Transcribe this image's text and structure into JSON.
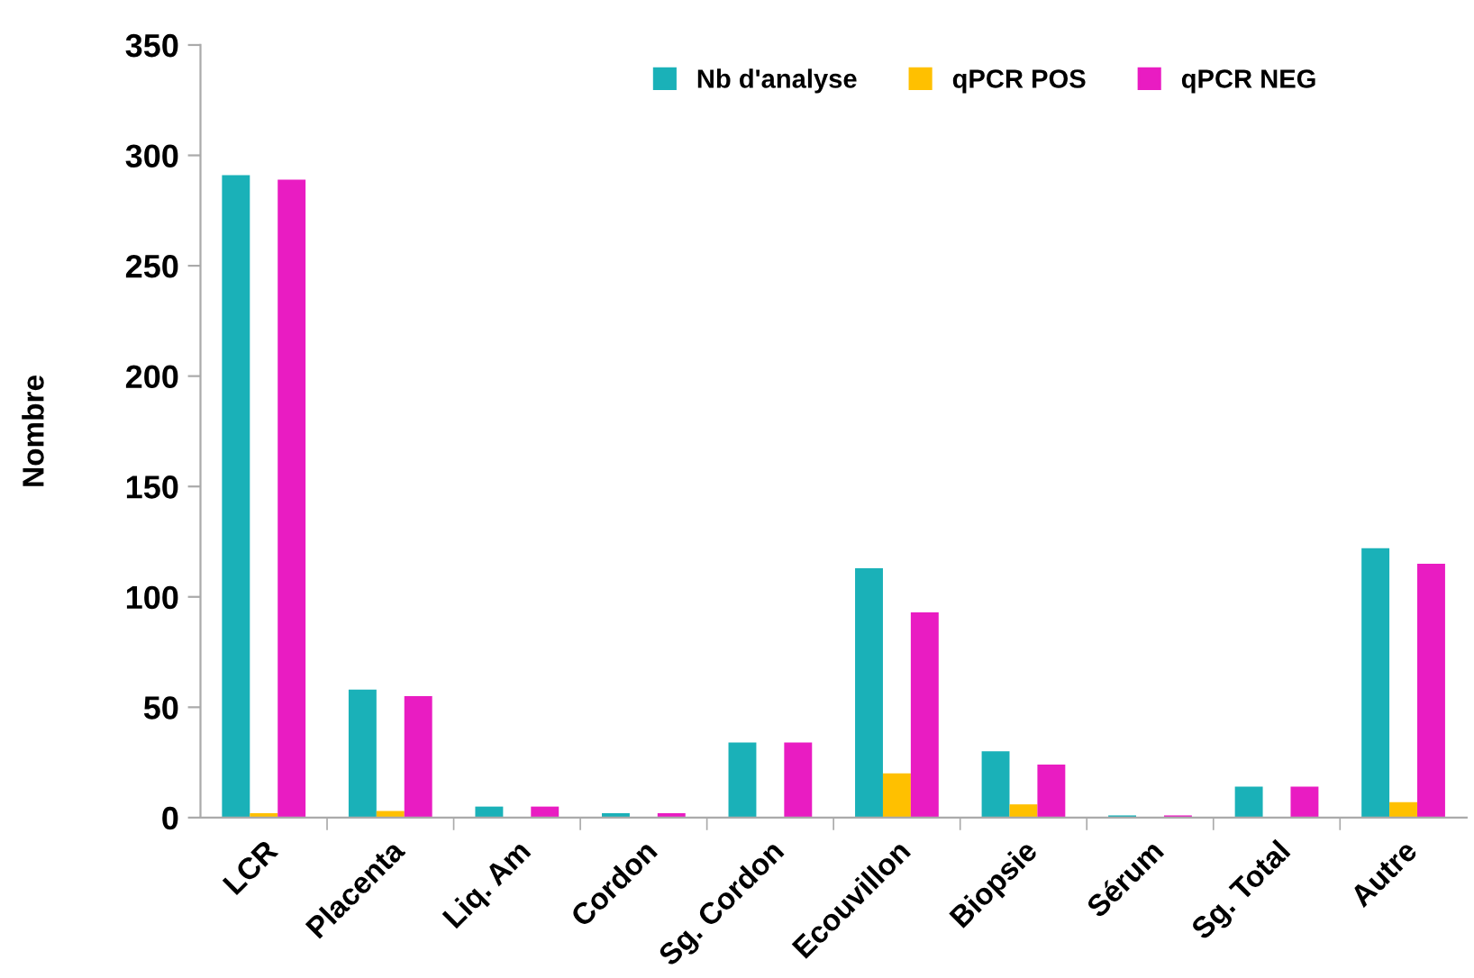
{
  "chart_data": {
    "type": "bar",
    "ylabel": "Nombre",
    "categories": [
      "LCR",
      "Placenta",
      "Liq. Am",
      "Cordon",
      "Sg. Cordon",
      "Ecouvillon",
      "Biopsie",
      "Sérum",
      "Sg. Total",
      "Autre"
    ],
    "series": [
      {
        "name": "Nb d'analyse",
        "color": "#1ab1b8",
        "values": [
          291,
          58,
          5,
          2,
          34,
          113,
          30,
          1,
          14,
          122
        ]
      },
      {
        "name": "qPCR POS",
        "color": "#ffc000",
        "values": [
          2,
          3,
          0,
          0,
          0,
          20,
          6,
          0,
          0,
          7
        ]
      },
      {
        "name": "qPCR NEG",
        "color": "#e91cc2",
        "values": [
          289,
          55,
          5,
          2,
          34,
          93,
          24,
          1,
          14,
          115
        ]
      }
    ],
    "ylim": [
      0,
      350
    ],
    "yticks": [
      0,
      50,
      100,
      150,
      200,
      250,
      300,
      350
    ],
    "grid": false,
    "legend": "top"
  }
}
